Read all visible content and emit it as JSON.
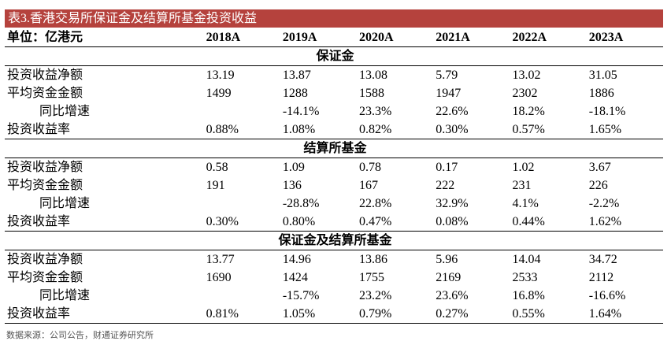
{
  "title": "表3.香港交易所保证金及结算所基金投资收益",
  "table": {
    "header": [
      "单位：亿港元",
      "2018A",
      "2019A",
      "2020A",
      "2021A",
      "2022A",
      "2023A"
    ],
    "sections": [
      {
        "name": "保证金",
        "rows": [
          [
            "投资收益净额",
            "13.19",
            "13.87",
            "13.08",
            "5.79",
            "13.02",
            "31.05"
          ],
          [
            "平均资金金额",
            "1499",
            "1288",
            "1588",
            "1947",
            "2302",
            "1886"
          ],
          [
            "同比增速",
            null,
            "-14.1%",
            "23.3%",
            "22.6%",
            "18.2%",
            "-18.1%"
          ],
          [
            "投资收益率",
            "0.88%",
            "1.08%",
            "0.82%",
            "0.30%",
            "0.57%",
            "1.65%"
          ]
        ]
      },
      {
        "name": "结算所基金",
        "rows": [
          [
            "投资收益净额",
            "0.58",
            "1.09",
            "0.78",
            "0.17",
            "1.02",
            "3.67"
          ],
          [
            "平均资金金额",
            "191",
            "136",
            "167",
            "222",
            "231",
            "226"
          ],
          [
            "同比增速",
            null,
            "-28.8%",
            "22.8%",
            "32.9%",
            "4.1%",
            "-2.2%"
          ],
          [
            "投资收益率",
            "0.30%",
            "0.80%",
            "0.47%",
            "0.08%",
            "0.44%",
            "1.62%"
          ]
        ]
      },
      {
        "name": "保证金及结算所基金",
        "rows": [
          [
            "投资收益净额",
            "13.77",
            "14.96",
            "13.86",
            "5.96",
            "14.04",
            "34.72"
          ],
          [
            "平均资金金额",
            "1690",
            "1424",
            "1755",
            "2169",
            "2533",
            "2112"
          ],
          [
            "同比增速",
            null,
            "-15.7%",
            "23.2%",
            "23.6%",
            "16.8%",
            "-16.6%"
          ],
          [
            "投资收益率",
            "0.81%",
            "1.05%",
            "0.79%",
            "0.27%",
            "0.55%",
            "1.64%"
          ]
        ]
      }
    ]
  },
  "source": "数据来源：公司公告，财通证券研究所"
}
